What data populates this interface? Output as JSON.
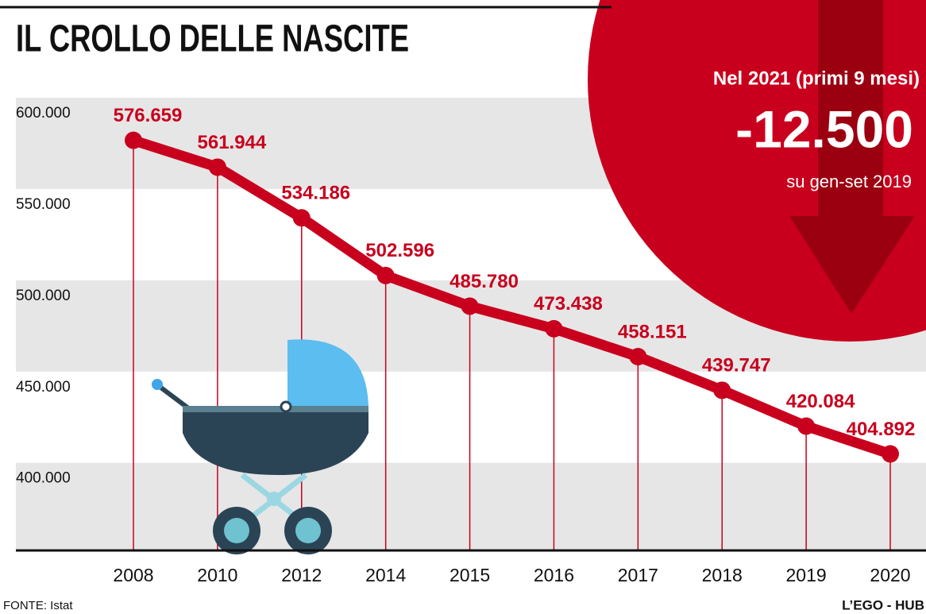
{
  "chart_data": {
    "type": "line",
    "title": "IL CROLLO DELLE NASCITE",
    "categories": [
      "2008",
      "2010",
      "2012",
      "2014",
      "2015",
      "2016",
      "2017",
      "2018",
      "2019",
      "2020"
    ],
    "values": [
      576659,
      561944,
      534186,
      502596,
      485780,
      473438,
      458151,
      439747,
      420084,
      404892
    ],
    "value_labels": [
      "576.659",
      "561.944",
      "534.186",
      "502.596",
      "485.780",
      "473.438",
      "458.151",
      "439.747",
      "420.084",
      "404.892"
    ],
    "color": "#c8001e",
    "ylim": [
      352000,
      610000
    ],
    "yticks": [
      {
        "value": 400000,
        "label": "400.000"
      },
      {
        "value": 450000,
        "label": "450.000"
      },
      {
        "value": 500000,
        "label": "500.000"
      },
      {
        "value": 550000,
        "label": "550.000"
      },
      {
        "value": 600000,
        "label": "600.000"
      }
    ],
    "grid": true,
    "annotations": [
      "Nel 2021 (primi 9 mesi)",
      "-12.500",
      "su gen-set 2019"
    ],
    "source": "FONTE: Istat",
    "credit": "L’EGO - HUB"
  }
}
